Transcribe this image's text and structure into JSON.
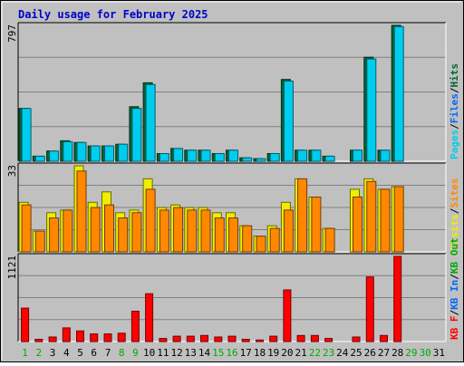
{
  "chart_data": {
    "type": "bar",
    "title": "Daily usage for February 2025",
    "categories": [
      "1",
      "2",
      "3",
      "4",
      "5",
      "6",
      "7",
      "8",
      "9",
      "10",
      "11",
      "12",
      "13",
      "14",
      "15",
      "16",
      "17",
      "18",
      "19",
      "20",
      "21",
      "22",
      "23",
      "24",
      "25",
      "26",
      "27",
      "28",
      "29",
      "30",
      "31"
    ],
    "weekend_days": [
      1,
      2,
      8,
      9,
      15,
      16,
      22,
      23,
      29,
      30
    ],
    "colors": {
      "background": "#c0c0c0",
      "grid": "#808080",
      "hits": "#006633",
      "files": "#0066ff",
      "pages": "#00ccee",
      "visits": "#eeee00",
      "sites": "#ff8800",
      "kb_f": "#ff0000",
      "kb_in": "#0066ff",
      "kb_out": "#00aa00",
      "weekday_label": "#000000",
      "weekend_label": "#00aa00"
    },
    "panels": [
      {
        "id": "pages-files-hits",
        "scale_label": "797",
        "ylim": [
          0,
          797
        ],
        "series": [
          {
            "name": "Hits",
            "color": "#006633",
            "values": [
              310,
              30,
              60,
              120,
              110,
              90,
              90,
              100,
              320,
              460,
              45,
              75,
              65,
              65,
              45,
              65,
              20,
              15,
              45,
              480,
              65,
              65,
              30,
              0,
              65,
              610,
              65,
              797,
              0,
              0,
              0
            ]
          },
          {
            "name": "Files",
            "color": "#0066ff",
            "values": [
              0,
              0,
              0,
              0,
              0,
              0,
              0,
              0,
              0,
              0,
              0,
              0,
              0,
              0,
              0,
              0,
              0,
              0,
              0,
              0,
              0,
              0,
              0,
              0,
              0,
              0,
              0,
              0,
              0,
              0,
              0
            ]
          },
          {
            "name": "Pages",
            "color": "#00ccee",
            "values": [
              310,
              30,
              60,
              115,
              110,
              90,
              90,
              100,
              310,
              450,
              45,
              75,
              65,
              65,
              45,
              65,
              20,
              15,
              45,
              470,
              65,
              65,
              30,
              0,
              65,
              600,
              65,
              790,
              0,
              0,
              0
            ]
          }
        ],
        "legend": [
          {
            "name": "Pages",
            "color": "#00ccee"
          },
          {
            "sep": "/"
          },
          {
            "name": "Files",
            "color": "#0066ff"
          },
          {
            "sep": "/"
          },
          {
            "name": "Hits",
            "color": "#006633"
          }
        ]
      },
      {
        "id": "visits-sites",
        "scale_label": "33",
        "ylim": [
          0,
          33
        ],
        "series": [
          {
            "name": "Visits",
            "color": "#eeee00",
            "values": [
              19,
              8,
              15,
              16,
              33,
              19,
              23,
              15,
              16,
              28,
              17,
              18,
              17,
              17,
              15,
              15,
              10,
              6,
              10,
              19,
              28,
              21,
              9,
              0,
              24,
              28,
              24,
              25,
              0,
              0,
              0
            ]
          },
          {
            "name": "Sites",
            "color": "#ff8800",
            "values": [
              18,
              8,
              13,
              16,
              31,
              17,
              18,
              13,
              15,
              24,
              16,
              17,
              16,
              16,
              13,
              13,
              10,
              6,
              9,
              16,
              28,
              21,
              9,
              0,
              21,
              27,
              24,
              25,
              0,
              0,
              0
            ]
          }
        ],
        "legend": [
          {
            "name": "Visits",
            "color": "#eeee00"
          },
          {
            "sep": "/"
          },
          {
            "name": "Sites",
            "color": "#ff8800"
          }
        ]
      },
      {
        "id": "kbytes",
        "scale_label": "1121",
        "ylim": [
          0,
          1121
        ],
        "series": [
          {
            "name": "KB F",
            "color": "#ff0000",
            "values": [
              440,
              30,
              60,
              180,
              140,
              100,
              100,
              110,
              400,
              630,
              40,
              70,
              70,
              80,
              60,
              70,
              30,
              20,
              70,
              680,
              80,
              80,
              40,
              0,
              60,
              850,
              80,
              1121,
              0,
              0,
              0
            ]
          }
        ],
        "legend": [
          {
            "name": "KB F",
            "color": "#ff0000"
          },
          {
            "sep": "/"
          },
          {
            "name": "KB In",
            "color": "#0066ff"
          },
          {
            "sep": "/"
          },
          {
            "name": "KB Out",
            "color": "#00aa00"
          }
        ]
      }
    ]
  }
}
